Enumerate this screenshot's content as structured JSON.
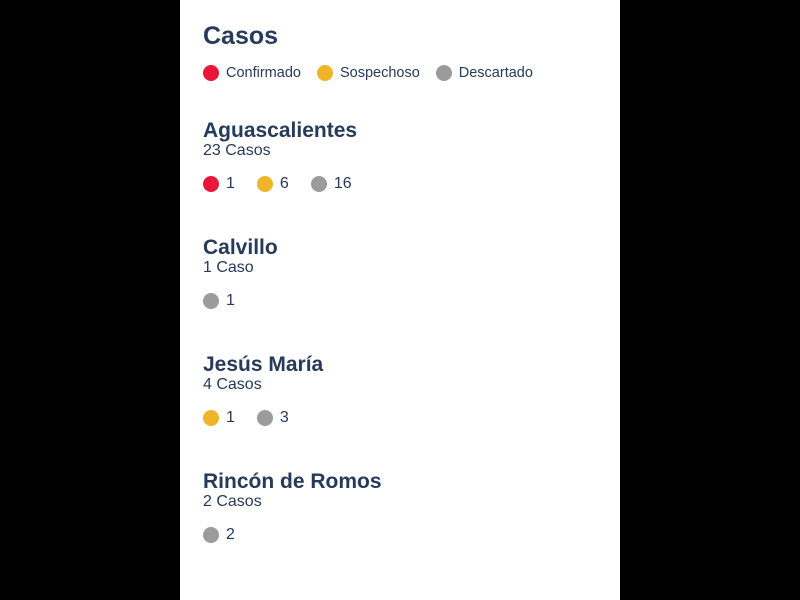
{
  "title": "Casos",
  "colors": {
    "confirmado": "#e8173a",
    "sospechoso": "#f0b429",
    "descartado": "#9b9b9b",
    "text": "#263a5a"
  },
  "legend": [
    {
      "key": "confirmado",
      "label": "Confirmado"
    },
    {
      "key": "sospechoso",
      "label": "Sospechoso"
    },
    {
      "key": "descartado",
      "label": "Descartado"
    }
  ],
  "municipios": [
    {
      "name": "Aguascalientes",
      "total": "23 Casos",
      "counts": [
        {
          "key": "confirmado",
          "value": "1"
        },
        {
          "key": "sospechoso",
          "value": "6"
        },
        {
          "key": "descartado",
          "value": "16"
        }
      ]
    },
    {
      "name": "Calvillo",
      "total": "1 Caso",
      "counts": [
        {
          "key": "descartado",
          "value": "1"
        }
      ]
    },
    {
      "name": "Jesús María",
      "total": "4 Casos",
      "counts": [
        {
          "key": "sospechoso",
          "value": "1"
        },
        {
          "key": "descartado",
          "value": "3"
        }
      ]
    },
    {
      "name": "Rincón de Romos",
      "total": "2 Casos",
      "counts": [
        {
          "key": "descartado",
          "value": "2"
        }
      ]
    }
  ]
}
